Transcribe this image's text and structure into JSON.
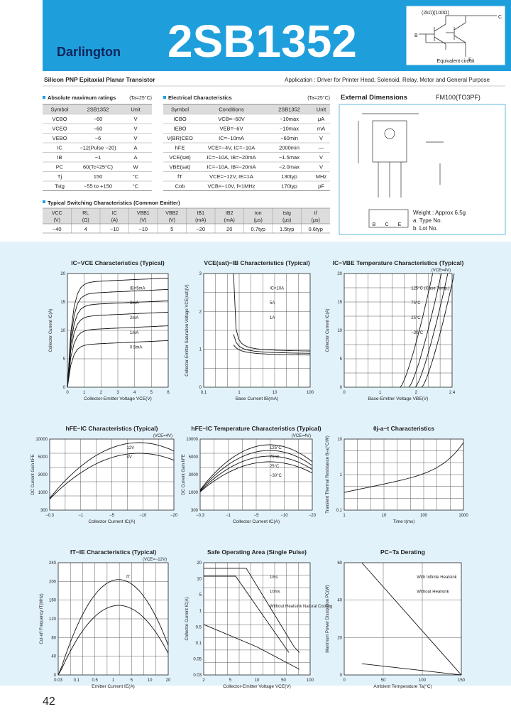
{
  "header": {
    "brand": "Darlington",
    "part_number": "2SB1352",
    "circuit_values": "(2kΩ)(100Ω)",
    "circuit_caption": "Equivalent circuit",
    "circuit_pins": [
      "B",
      "C",
      "E"
    ]
  },
  "subtitle": "Silicon PNP Epitaxial Planar Transistor",
  "application": "Application : Driver for Printer Head, Solenoid, Relay, Motor and General Purpose",
  "absolute_max": {
    "title": "Absolute maximum ratings",
    "condition": "(Ta=25°C)",
    "columns": [
      "Symbol",
      "2SB1352",
      "Unit"
    ],
    "rows": [
      [
        "VCBO",
        "−60",
        "V"
      ],
      [
        "VCEO",
        "−60",
        "V"
      ],
      [
        "VEBO",
        "−6",
        "V"
      ],
      [
        "IC",
        "−12(Pulse −20)",
        "A"
      ],
      [
        "IB",
        "−1",
        "A"
      ],
      [
        "PC",
        "60(Tc=25°C)",
        "W"
      ],
      [
        "Tj",
        "150",
        "°C"
      ],
      [
        "Tstg",
        "−55 to +150",
        "°C"
      ]
    ]
  },
  "electrical": {
    "title": "Electrical Characteristics",
    "condition": "(Ta=25°C)",
    "columns": [
      "Symbol",
      "Conditions",
      "2SB1352",
      "Unit"
    ],
    "rows": [
      [
        "ICBO",
        "VCB=−60V",
        "−10max",
        "μA"
      ],
      [
        "IEBO",
        "VEB=−6V",
        "−10max",
        "mA"
      ],
      [
        "V(BR)CEO",
        "IC=−10mA",
        "−60min",
        "V"
      ],
      [
        "hFE",
        "VCE=−4V, IC=−10A",
        "2000min",
        "—"
      ],
      [
        "VCE(sat)",
        "IC=−10A, IB=−20mA",
        "−1.5max",
        "V"
      ],
      [
        "VBE(sat)",
        "IC=−10A, IB=−20mA",
        "−2.0max",
        "V"
      ],
      [
        "fT",
        "VCE=−12V, IE=1A",
        "130typ",
        "MHz"
      ],
      [
        "Cob",
        "VCB=−10V, f=1MHz",
        "170typ",
        "pF"
      ]
    ]
  },
  "switching": {
    "title": "Typical Switching Characteristics (Common Emitter)",
    "columns": [
      "VCC",
      "RL",
      "IC",
      "VBB1",
      "VBB2",
      "IB1",
      "IB2",
      "ton",
      "tstg",
      "tf"
    ],
    "units": [
      "(V)",
      "(Ω)",
      "(A)",
      "(V)",
      "(V)",
      "(mA)",
      "(mA)",
      "(μs)",
      "(μs)",
      "(μs)"
    ],
    "rows": [
      [
        "−40",
        "4",
        "−10",
        "−10",
        "5",
        "−20",
        "20",
        "0.7typ",
        "1.5typ",
        "0.6typ"
      ]
    ]
  },
  "dimensions": {
    "title": "External Dimensions",
    "package": "FM100(TO3PF)",
    "pins": [
      "B",
      "C",
      "E"
    ],
    "notes": [
      "Weight : Approx 6.5g",
      "a. Type No.",
      "b. Lot No."
    ]
  },
  "graphs": [
    {
      "title": "IC−VCE Characteristics (Typical)",
      "xlabel": "Collector-Emitter Voltage VCE(V)",
      "ylabel": "Collector Current IC(A)",
      "xticks": [
        "0",
        "1",
        "2",
        "3",
        "4",
        "5",
        "6"
      ],
      "yticks": [
        "0",
        "5",
        "10",
        "15",
        "20"
      ],
      "labels": [
        "IB=5mA",
        "3mA",
        "2mA",
        "1mA",
        "0.5mA"
      ]
    },
    {
      "title": "VCE(sat)−IB Characteristics (Typical)",
      "xlabel": "Base Current IB(mA)",
      "ylabel": "Collector-Emitter Saturation Voltage VCE(sat)(V)",
      "xticks": [
        "0.1",
        "1",
        "10",
        "100"
      ],
      "yticks": [
        "0",
        "1",
        "2",
        "3"
      ],
      "labels": [
        "IC=10A",
        "5A",
        "1A"
      ]
    },
    {
      "title": "IC−VBE Temperature Characteristics (Typical)",
      "condition": "(VCE=4V)",
      "xlabel": "Base-Emitter Voltage VBE(V)",
      "ylabel": "Collector Current IC(A)",
      "xticks": [
        "0",
        "1",
        "2",
        "2.4"
      ],
      "yticks": [
        "0",
        "5",
        "10",
        "15",
        "20"
      ],
      "labels": [
        "125°C (Case Temp.)",
        "75°C",
        "25°C",
        "−30°C"
      ]
    },
    {
      "title": "hFE−IC Characteristics (Typical)",
      "condition": "(VCE=4V)",
      "xlabel": "Collector Current IC(A)",
      "ylabel": "DC Current Gain hFE",
      "xticks": [
        "−0.3",
        "−1",
        "−5",
        "−10",
        "−20"
      ],
      "yticks": [
        "300",
        "1000",
        "3000",
        "5000",
        "10000"
      ],
      "labels": [
        "12V",
        "4V"
      ]
    },
    {
      "title": "hFE−IC Temperature Characteristics (Typical)",
      "condition": "(VCE=4V)",
      "xlabel": "Collector Current IC(A)",
      "ylabel": "DC Current Gain hFE",
      "xticks": [
        "−0.3",
        "−1",
        "−5",
        "−10",
        "−20"
      ],
      "yticks": [
        "300",
        "1000",
        "3000",
        "5000",
        "10000"
      ],
      "labels": [
        "125°C",
        "75°C",
        "25°C",
        "−30°C"
      ]
    },
    {
      "title": "θj-a−t Characteristics",
      "xlabel": "Time t(ms)",
      "ylabel": "Transient Thermal Resistance θj-a(°C/W)",
      "xticks": [
        "1",
        "10",
        "100",
        "1000"
      ],
      "yticks": [
        "0.1",
        "1",
        "10"
      ],
      "labels": []
    },
    {
      "title": "fT−IE Characteristics (Typical)",
      "condition": "(VCE=−12V)",
      "xlabel": "Emitter Current IE(A)",
      "ylabel": "Cut-off Frequency fT(MHz)",
      "xticks": [
        "0.03",
        "0.1",
        "0.5",
        "1",
        "5",
        "10",
        "20"
      ],
      "yticks": [
        "0",
        "40",
        "80",
        "120",
        "160",
        "200",
        "240"
      ],
      "labels": [
        "fT"
      ]
    },
    {
      "title": "Safe Operating Area (Single Pulse)",
      "xlabel": "Collector-Emitter Voltage VCE(V)",
      "ylabel": "Collector Current IC(A)",
      "xticks": [
        "2",
        "5",
        "10",
        "50",
        "100"
      ],
      "yticks": [
        "0.03",
        "0.05",
        "0.1",
        "0.5",
        "1",
        "5",
        "10",
        "20"
      ],
      "labels": [
        "1ms",
        "10ms",
        "Without Heatsink Natural Cooling"
      ]
    },
    {
      "title": "PC−Ta Derating",
      "xlabel": "Ambient Temperature Ta(°C)",
      "ylabel": "Maximum Power Dissipation PC(W)",
      "xticks": [
        "0",
        "50",
        "100",
        "150"
      ],
      "yticks": [
        "0",
        "20",
        "40",
        "60"
      ],
      "labels": [
        "With Infinite Heatsink",
        "Without Heatsink"
      ]
    }
  ],
  "page_number": "42"
}
